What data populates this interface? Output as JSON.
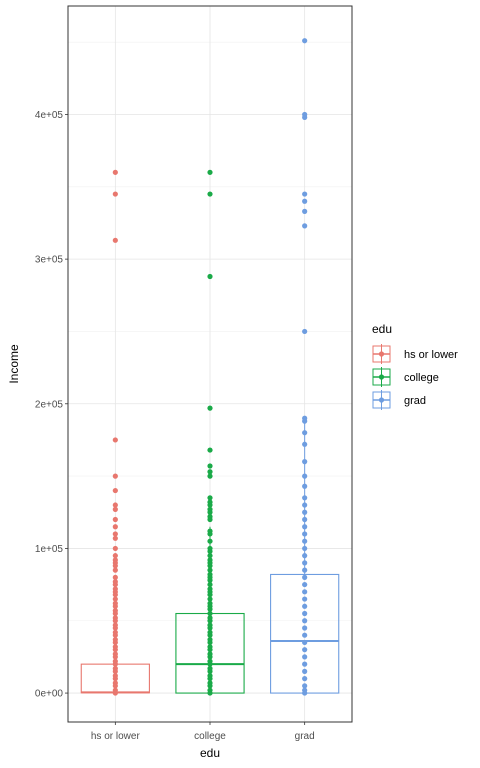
{
  "chart_data": {
    "type": "boxplot",
    "xlabel": "edu",
    "ylabel": "Income",
    "categories": [
      "hs or lower",
      "college",
      "grad"
    ],
    "ylim": [
      -20000,
      475000
    ],
    "yticks": [
      0,
      100000,
      200000,
      300000,
      400000
    ],
    "ytick_labels": [
      "0e+00",
      "1e+05",
      "2e+05",
      "3e+05",
      "4e+05"
    ],
    "grid": true,
    "legend": {
      "title": "edu",
      "position": "right",
      "labels": [
        "hs or lower",
        "college",
        "grad"
      ]
    },
    "series": [
      {
        "name": "hs or lower",
        "color": "#E8776E",
        "box": {
          "q1": 200,
          "median": 500,
          "q3": 20000,
          "whisker_low": 0,
          "whisker_high": 45000
        },
        "points": [
          360000,
          345000,
          313000,
          175000,
          150000,
          140000,
          130000,
          127000,
          120000,
          115000,
          110000,
          107000,
          100000,
          95000,
          92000,
          90000,
          88000,
          85000,
          80000,
          77000,
          75000,
          72000,
          70000,
          68000,
          65000,
          62000,
          60000,
          57000,
          55000,
          52000,
          50000,
          47000,
          45000,
          42000,
          40000,
          37000,
          35000,
          32000,
          30000,
          27000,
          25000,
          22000,
          20000,
          17000,
          15000,
          12000,
          10000,
          7000,
          5000,
          2000,
          0
        ]
      },
      {
        "name": "college",
        "color": "#1AAA48",
        "box": {
          "q1": 0,
          "median": 20000,
          "q3": 55000,
          "whisker_low": 0,
          "whisker_high": 115000
        },
        "points": [
          360000,
          345000,
          288000,
          197000,
          168000,
          157000,
          153000,
          150000,
          135000,
          132000,
          130000,
          127000,
          125000,
          122000,
          120000,
          112000,
          110000,
          105000,
          100000,
          98000,
          95000,
          92000,
          90000,
          88000,
          85000,
          82000,
          80000,
          78000,
          75000,
          72000,
          70000,
          68000,
          65000,
          62000,
          60000,
          58000,
          55000,
          52000,
          50000,
          47000,
          45000,
          42000,
          40000,
          37000,
          35000,
          32000,
          30000,
          27000,
          25000,
          22000,
          20000,
          17000,
          15000,
          12000,
          10000,
          7000,
          5000,
          2000,
          0
        ]
      },
      {
        "name": "grad",
        "color": "#6E9DE0",
        "box": {
          "q1": 0,
          "median": 36000,
          "q3": 82000,
          "whisker_low": 0,
          "whisker_high": 188000
        },
        "points": [
          451000,
          400000,
          398000,
          345000,
          340000,
          333000,
          323000,
          250000,
          190000,
          188000,
          180000,
          172000,
          160000,
          150000,
          143000,
          135000,
          130000,
          125000,
          120000,
          115000,
          110000,
          105000,
          100000,
          95000,
          90000,
          85000,
          80000,
          75000,
          70000,
          65000,
          60000,
          55000,
          50000,
          45000,
          40000,
          35000,
          30000,
          25000,
          20000,
          15000,
          10000,
          5000,
          2000,
          0
        ]
      }
    ]
  }
}
